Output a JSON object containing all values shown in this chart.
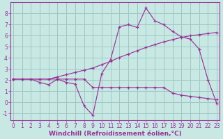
{
  "background_color": "#c8e8e4",
  "grid_color": "#a0c8c4",
  "line_color": "#993399",
  "xlabel": "Windchill (Refroidissement éolien,°C)",
  "xlim": [
    -0.3,
    23.3
  ],
  "ylim": [
    -1.6,
    9.0
  ],
  "xticks": [
    0,
    1,
    2,
    3,
    4,
    5,
    6,
    7,
    8,
    9,
    10,
    11,
    12,
    13,
    14,
    15,
    16,
    17,
    18,
    19,
    20,
    21,
    22,
    23
  ],
  "yticks": [
    -1,
    0,
    1,
    2,
    3,
    4,
    5,
    6,
    7,
    8
  ],
  "line1_x": [
    0,
    1,
    2,
    3,
    4,
    5,
    6,
    7,
    8,
    9,
    10,
    11,
    12,
    13,
    14,
    15,
    16,
    17,
    18,
    19,
    20,
    21,
    22,
    23
  ],
  "line1_y": [
    2.1,
    2.1,
    2.1,
    1.8,
    1.6,
    2.1,
    1.8,
    1.65,
    -0.3,
    -1.15,
    2.6,
    3.85,
    6.8,
    7.0,
    6.75,
    8.5,
    7.35,
    7.0,
    6.4,
    5.9,
    5.7,
    4.8,
    2.05,
    -0.1
  ],
  "line2_x": [
    0,
    1,
    2,
    3,
    4,
    5,
    6,
    7,
    8,
    9,
    10,
    11,
    12,
    13,
    14,
    15,
    16,
    17,
    18,
    19,
    20,
    21,
    22,
    23
  ],
  "line2_y": [
    2.1,
    2.1,
    2.1,
    2.1,
    2.1,
    2.3,
    2.5,
    2.7,
    2.9,
    3.1,
    3.4,
    3.7,
    4.05,
    4.35,
    4.65,
    4.95,
    5.2,
    5.45,
    5.65,
    5.85,
    6.0,
    6.1,
    6.2,
    6.3
  ],
  "line3_x": [
    0,
    1,
    2,
    3,
    4,
    5,
    6,
    7,
    8,
    9,
    10,
    11,
    12,
    13,
    14,
    15,
    16,
    17,
    18,
    19,
    20,
    21,
    22,
    23
  ],
  "line3_y": [
    2.1,
    2.1,
    2.1,
    2.1,
    2.1,
    2.1,
    2.1,
    2.1,
    2.1,
    1.35,
    1.35,
    1.35,
    1.35,
    1.35,
    1.35,
    1.35,
    1.35,
    1.35,
    0.85,
    0.65,
    0.55,
    0.45,
    0.35,
    0.25
  ],
  "tick_fontsize": 5.5,
  "axis_fontsize": 6.5
}
